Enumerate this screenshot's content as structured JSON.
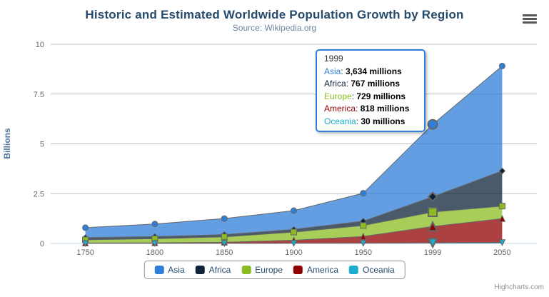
{
  "chart": {
    "title": "Historic and Estimated Worldwide Population Growth by Region",
    "subtitle": "Source: Wikipedia.org",
    "credits": "Highcharts.com"
  },
  "yaxis": {
    "title": "Billions"
  },
  "tooltip": {
    "header": "1999",
    "rows": [
      {
        "label": "Asia",
        "color": "#2f7ed8",
        "value": "3,634 millions"
      },
      {
        "label": "Africa",
        "color": "#0d233a",
        "value": "767 millions"
      },
      {
        "label": "Europe",
        "color": "#8bbc21",
        "value": "729 millions"
      },
      {
        "label": "America",
        "color": "#910000",
        "value": "818 millions"
      },
      {
        "label": "Oceania",
        "color": "#1aadce",
        "value": "30 millions"
      }
    ]
  },
  "styles": {
    "title_color": "#274b6d",
    "subtitle_color": "#6D869F",
    "line_color": "#666666",
    "grid_color": "#C0C0C0",
    "axis_line_color": "#C0D0E0",
    "label_color": "#666666",
    "axis_title_color": "#4d759e",
    "legend_border_color": "#909090",
    "tooltip_border_color": "#2f7ed8",
    "fill_opacity": 0.75
  },
  "chart_data": {
    "type": "area",
    "stacking": "normal",
    "title": "Historic and Estimated Worldwide Population Growth by Region",
    "subtitle": "Source: Wikipedia.org",
    "xlabel": "",
    "ylabel": "Billions",
    "unit": "millions",
    "ylim": [
      0,
      10
    ],
    "yticks": [
      0,
      2.5,
      5,
      7.5,
      10
    ],
    "grid": "horizontal",
    "legend_position": "bottom",
    "hover_category": "1999",
    "categories": [
      "1750",
      "1800",
      "1850",
      "1900",
      "1950",
      "1999",
      "2050"
    ],
    "series": [
      {
        "name": "Asia",
        "color": "#2f7ed8",
        "marker": "circle",
        "values": [
          502,
          635,
          809,
          947,
          1402,
          3634,
          5268
        ]
      },
      {
        "name": "Africa",
        "color": "#0d233a",
        "marker": "diamond",
        "values": [
          106,
          107,
          111,
          133,
          221,
          767,
          1766
        ]
      },
      {
        "name": "Europe",
        "color": "#8bbc21",
        "marker": "square",
        "values": [
          163,
          203,
          276,
          408,
          547,
          729,
          628
        ]
      },
      {
        "name": "America",
        "color": "#910000",
        "marker": "triangle",
        "values": [
          18,
          31,
          54,
          156,
          339,
          818,
          1201
        ]
      },
      {
        "name": "Oceania",
        "color": "#1aadce",
        "marker": "triangle-down",
        "values": [
          2,
          2,
          2,
          6,
          13,
          30,
          46
        ]
      }
    ]
  }
}
